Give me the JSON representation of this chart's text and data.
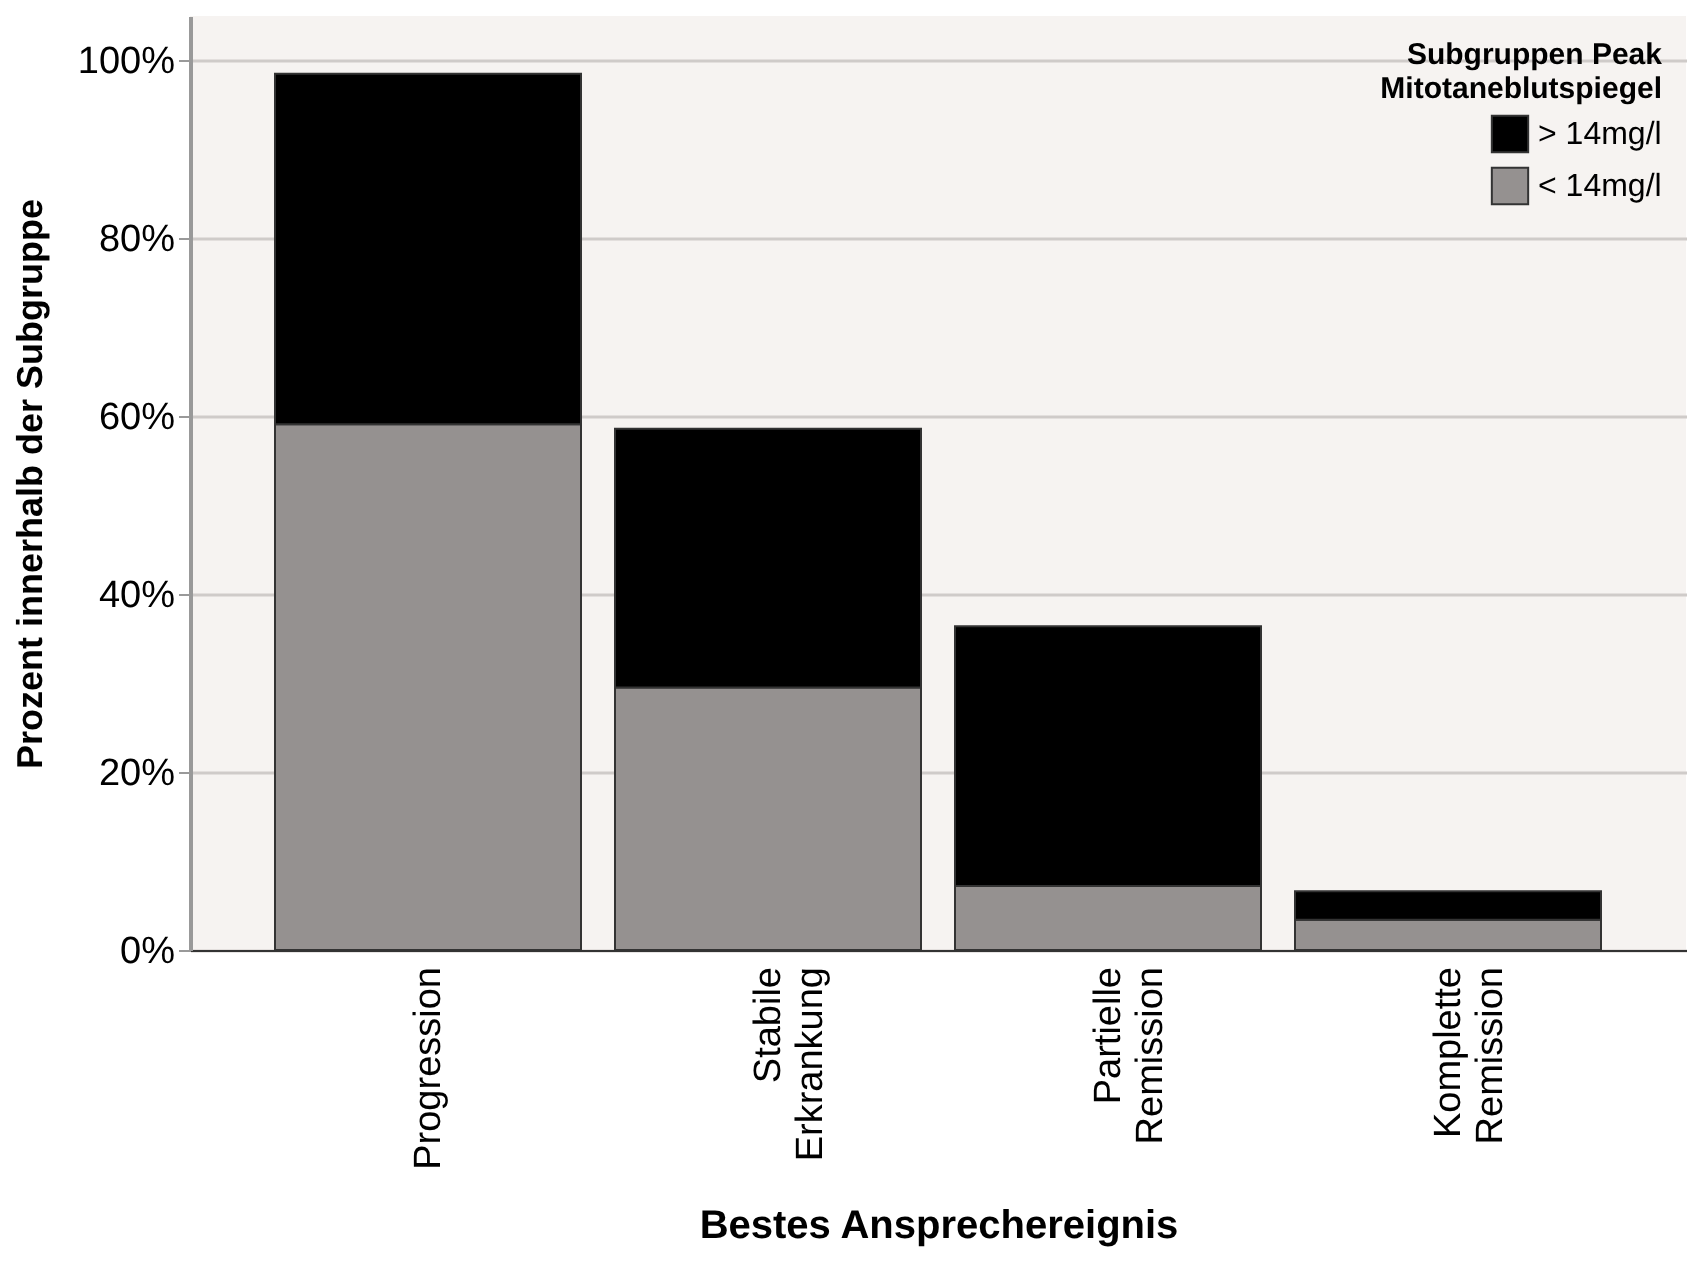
{
  "chart_data": {
    "type": "bar",
    "stacked": true,
    "xlabel": "Bestes Ansprechereignis",
    "ylabel": "Prozent innerhalb der Subgruppe",
    "legend_title": "Subgruppen Peak Mitotaneblutspiegel",
    "categories": [
      "Progression",
      "Stabile Erkrankung",
      "Partielle Remission",
      "Komplette Remission"
    ],
    "series": [
      {
        "name": "< 14mg/l",
        "color": "#959190",
        "values": [
          59.1,
          29.5,
          7.2,
          3.4
        ]
      },
      {
        "name": "> 14mg/l",
        "color": "#000000",
        "values": [
          39.4,
          29.1,
          29.2,
          3.2
        ]
      }
    ],
    "ylim": [
      0,
      105
    ],
    "yticks": [
      {
        "value": 0,
        "label": "0%"
      },
      {
        "value": 20,
        "label": "20%"
      },
      {
        "value": 40,
        "label": "40%"
      },
      {
        "value": 60,
        "label": "60%"
      },
      {
        "value": 80,
        "label": "80%"
      },
      {
        "value": 100,
        "label": "100%"
      }
    ],
    "grid": "y",
    "legend": "top right"
  }
}
